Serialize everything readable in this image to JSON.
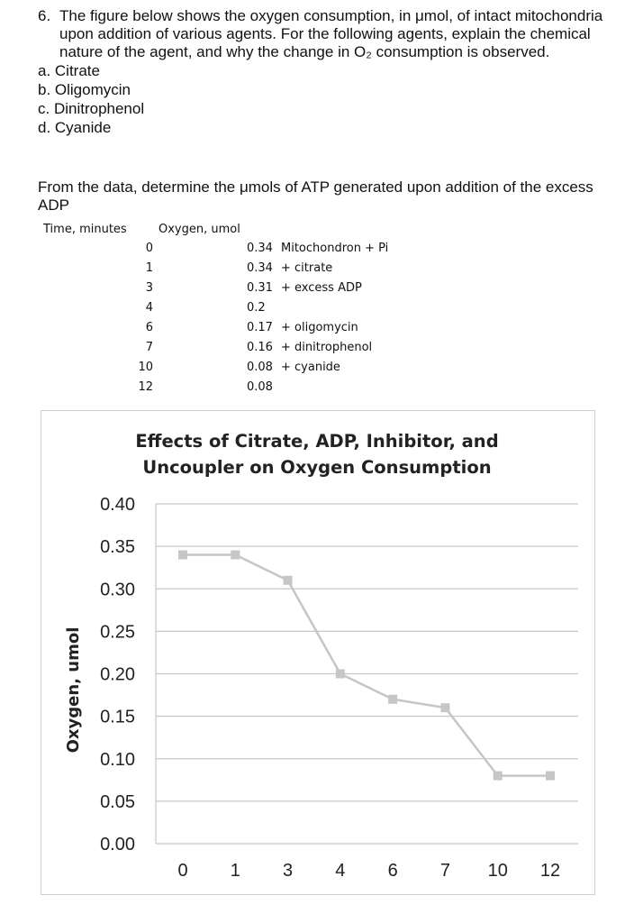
{
  "question": {
    "number": "6.",
    "text": "The figure below shows the oxygen consumption, in μmol, of intact mitochondria upon addition of various agents. For the following agents, explain the chemical nature of the agent, and why the change in O₂ consumption is observed.",
    "items": [
      "a. Citrate",
      "b. Oligomycin",
      "c. Dinitrophenol",
      "d. Cyanide"
    ]
  },
  "prompt": "From the data, determine the μmols of ATP generated upon addition of the excess ADP",
  "table": {
    "headers": [
      "Time, minutes",
      "Oxygen, umol"
    ],
    "rows": [
      {
        "time": "0",
        "oxygen": "0.34",
        "note": "Mitochondron + Pi"
      },
      {
        "time": "1",
        "oxygen": "0.34",
        "note": "+ citrate"
      },
      {
        "time": "3",
        "oxygen": "0.31",
        "note": "+ excess ADP"
      },
      {
        "time": "4",
        "oxygen": "0.2",
        "note": ""
      },
      {
        "time": "6",
        "oxygen": "0.17",
        "note": "+ oligomycin"
      },
      {
        "time": "7",
        "oxygen": "0.16",
        "note": "+ dinitrophenol"
      },
      {
        "time": "10",
        "oxygen": "0.08",
        "note": "+ cyanide"
      },
      {
        "time": "12",
        "oxygen": "0.08",
        "note": ""
      }
    ]
  },
  "chart_data": {
    "type": "line",
    "title": "Effects of Citrate, ADP, Inhibitor, and Uncoupler on Oxygen Consumption",
    "title_lines": [
      "Effects of Citrate, ADP, Inhibitor, and",
      "Uncoupler on Oxygen Consumption"
    ],
    "xlabel": "",
    "ylabel": "Oxygen, umol",
    "categories": [
      "0",
      "1",
      "3",
      "4",
      "6",
      "7",
      "10",
      "12"
    ],
    "series": [
      {
        "name": "Oxygen, umol",
        "values": [
          0.34,
          0.34,
          0.31,
          0.2,
          0.17,
          0.16,
          0.08,
          0.08
        ]
      }
    ],
    "ylim": [
      0,
      0.4
    ],
    "yticks": [
      "0.00",
      "0.05",
      "0.10",
      "0.15",
      "0.20",
      "0.25",
      "0.30",
      "0.35",
      "0.40"
    ],
    "grid": true,
    "line_color": "#c6c6c6",
    "grid_color": "#c8c8c8"
  }
}
